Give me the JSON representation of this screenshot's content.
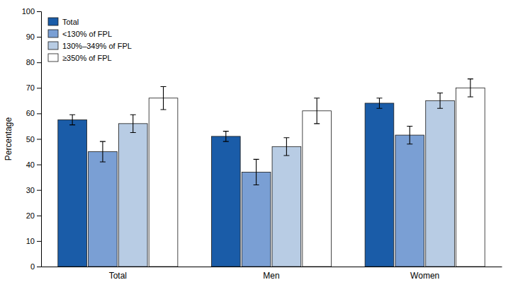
{
  "chart_data": {
    "type": "bar",
    "y_label": "Percentage",
    "categories": [
      "Total",
      "Men",
      "Women"
    ],
    "series": [
      {
        "name": "Total",
        "color": "#1a5ca8",
        "values": [
          57.5,
          51.0,
          64.0
        ],
        "errors": [
          2.0,
          2.0,
          2.0
        ]
      },
      {
        "name": "<130% of FPL",
        "color": "#7a9fd4",
        "values": [
          45.0,
          37.0,
          51.5
        ],
        "errors": [
          4.0,
          5.0,
          3.5
        ]
      },
      {
        "name": "130%–349% of FPL",
        "color": "#b8cce4",
        "values": [
          56.0,
          47.0,
          65.0
        ],
        "errors": [
          3.5,
          3.5,
          3.0
        ]
      },
      {
        "name": "≥350% of FPL",
        "color": "#ffffff",
        "values": [
          66.0,
          61.0,
          70.0
        ],
        "errors": [
          4.5,
          5.0,
          3.5
        ]
      }
    ],
    "ylim": [
      0,
      100
    ],
    "yticks": [
      0,
      10,
      20,
      30,
      40,
      50,
      60,
      70,
      80,
      90,
      100
    ],
    "grid": false,
    "legend": "upper left"
  }
}
